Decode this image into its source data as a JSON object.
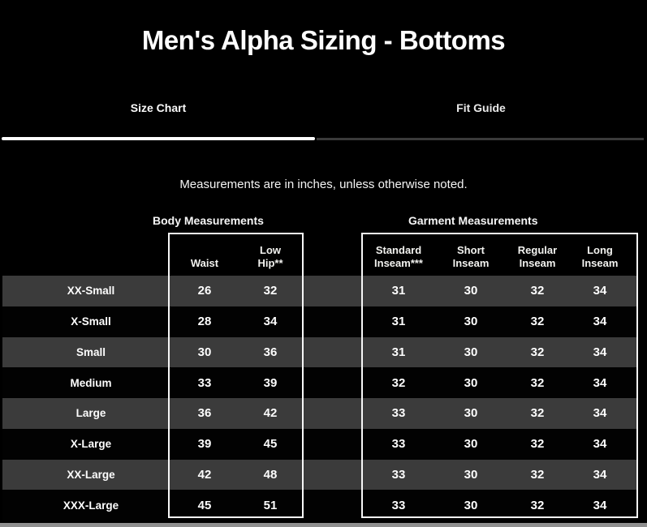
{
  "page": {
    "title": "Men's Alpha Sizing - Bottoms",
    "note": "Measurements are in inches, unless otherwise noted."
  },
  "tabs": [
    {
      "label": "Size Chart",
      "active": true
    },
    {
      "label": "Fit Guide",
      "active": false
    }
  ],
  "table": {
    "section_labels": {
      "body": "Body Measurements",
      "garment": "Garment Measurements"
    },
    "body_columns": [
      "Waist",
      "Low Hip**"
    ],
    "garment_columns": [
      "Standard Inseam***",
      "Short Inseam",
      "Regular Inseam",
      "Long Inseam"
    ],
    "rows": [
      {
        "size": "XX-Small",
        "body": [
          "26",
          "32"
        ],
        "garment": [
          "31",
          "30",
          "32",
          "34"
        ]
      },
      {
        "size": "X-Small",
        "body": [
          "28",
          "34"
        ],
        "garment": [
          "31",
          "30",
          "32",
          "34"
        ]
      },
      {
        "size": "Small",
        "body": [
          "30",
          "36"
        ],
        "garment": [
          "31",
          "30",
          "32",
          "34"
        ]
      },
      {
        "size": "Medium",
        "body": [
          "33",
          "39"
        ],
        "garment": [
          "32",
          "30",
          "32",
          "34"
        ]
      },
      {
        "size": "Large",
        "body": [
          "36",
          "42"
        ],
        "garment": [
          "33",
          "30",
          "32",
          "34"
        ]
      },
      {
        "size": "X-Large",
        "body": [
          "39",
          "45"
        ],
        "garment": [
          "33",
          "30",
          "32",
          "34"
        ]
      },
      {
        "size": "XX-Large",
        "body": [
          "42",
          "48"
        ],
        "garment": [
          "33",
          "30",
          "32",
          "34"
        ]
      },
      {
        "size": "XXX-Large",
        "body": [
          "45",
          "51"
        ],
        "garment": [
          "33",
          "30",
          "32",
          "34"
        ]
      }
    ]
  },
  "colors": {
    "background": "#000000",
    "stripe_gray": "#3b3b3b",
    "stripe_black": "#020202",
    "box_border": "#f7f7f7",
    "active_underline": "#ffffff",
    "inactive_underline": "#3a3a3a",
    "bottom_band": "#8f8f8f",
    "text": "#fdfdfd"
  }
}
